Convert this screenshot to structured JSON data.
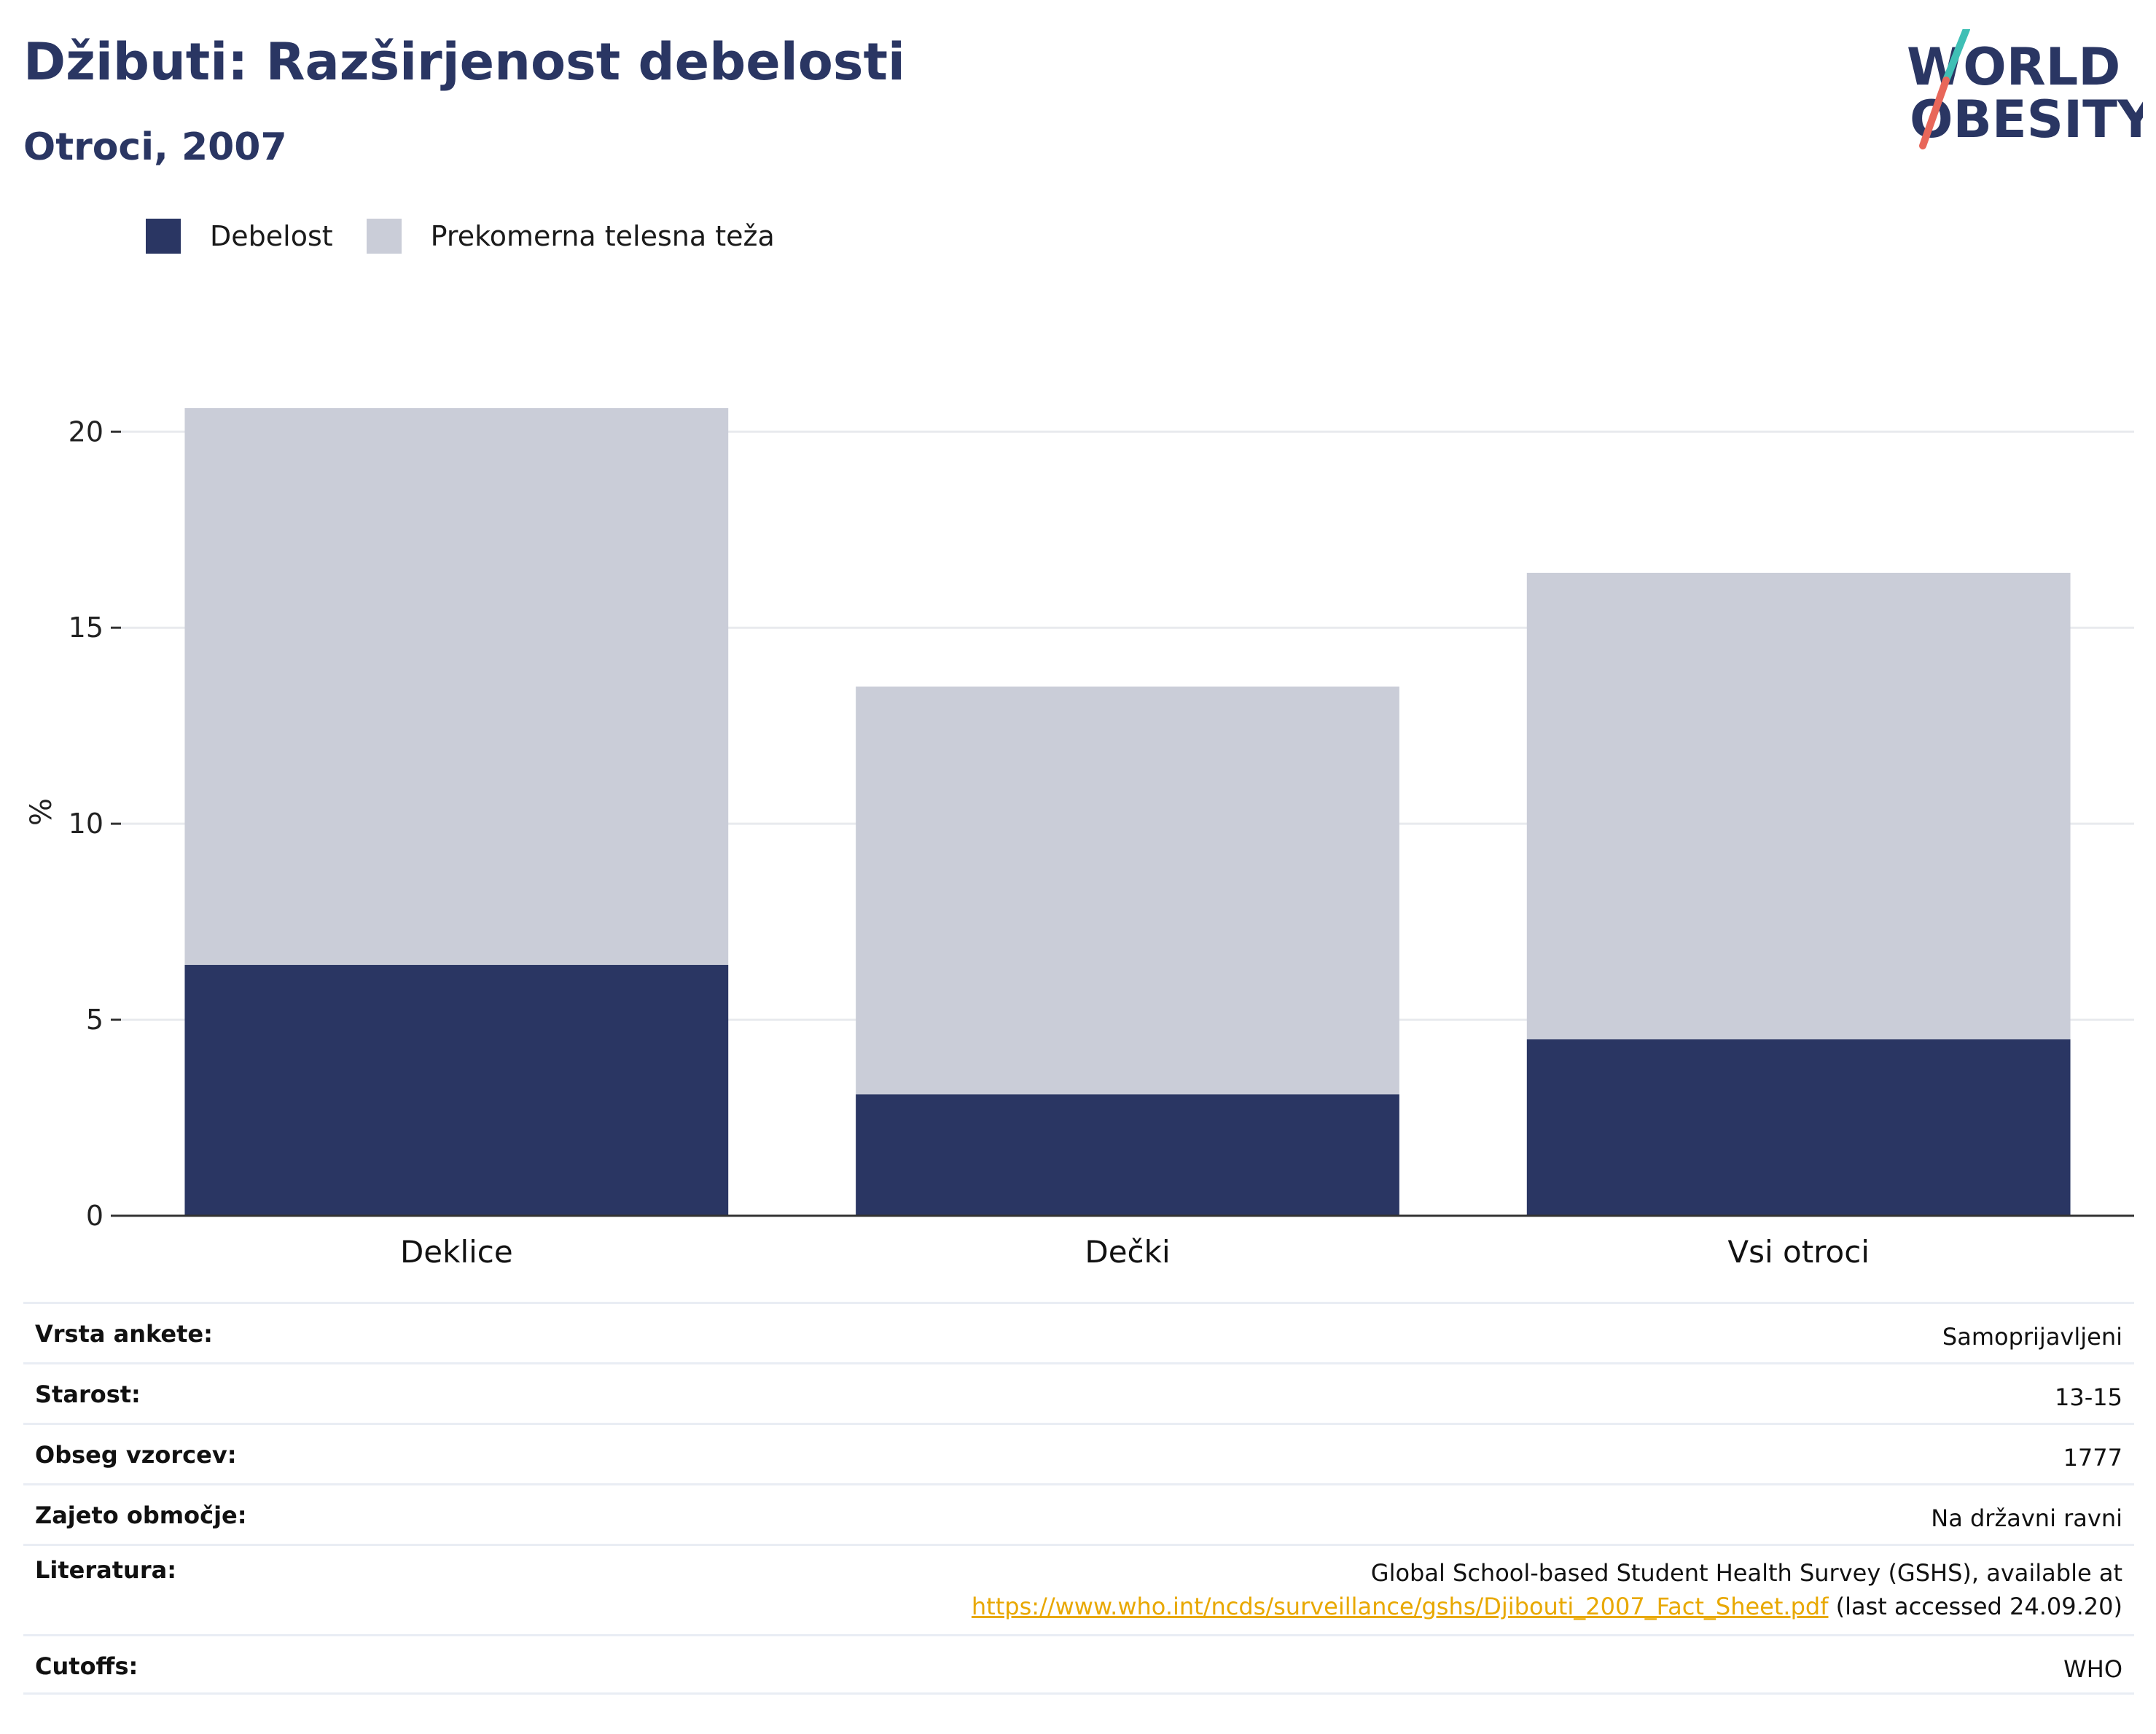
{
  "header": {
    "title": "Džibuti: Razširjenost debelosti",
    "subtitle": "Otroci, 2007"
  },
  "logo": {
    "line1": "WORLD",
    "line2": "OBESITY",
    "colors": {
      "text": "#2a3663",
      "slash_top": "#3fbfb5",
      "slash_bottom": "#e8675a"
    }
  },
  "colors": {
    "obesity": "#2a3663",
    "overweight": "#cacdd8",
    "grid": "#e8eaee",
    "axis": "#333333",
    "link": "#e8a800"
  },
  "chart_data": {
    "type": "bar",
    "stacked": true,
    "categories": [
      "Deklice",
      "Dečki",
      "Vsi otroci"
    ],
    "series": [
      {
        "name": "Debelost",
        "values": [
          6.4,
          3.1,
          4.5
        ]
      },
      {
        "name": "Prekomerna telesna teža",
        "values": [
          14.2,
          10.4,
          11.9
        ]
      }
    ],
    "ylabel": "%",
    "ylim": [
      0,
      20.6
    ],
    "yticks": [
      0,
      5,
      10,
      15,
      20
    ],
    "grid": true,
    "legend_position": "top-left"
  },
  "info": {
    "rows": [
      {
        "label": "Vrsta ankete:",
        "value": "Samoprijavljeni"
      },
      {
        "label": "Starost:",
        "value": "13-15"
      },
      {
        "label": "Obseg vzorcev:",
        "value": "1777"
      },
      {
        "label": "Zajeto območje:",
        "value": "Na državni ravni"
      },
      {
        "label": "Literatura:",
        "value_line1": "Global School-based Student Health Survey (GSHS), available at",
        "link": "https://www.who.int/ncds/surveillance/gshs/Djibouti_2007_Fact_Sheet.pdf",
        "value_suffix": " (last accessed 24.09.20)"
      },
      {
        "label": "Cutoffs:",
        "value": "WHO"
      }
    ]
  }
}
